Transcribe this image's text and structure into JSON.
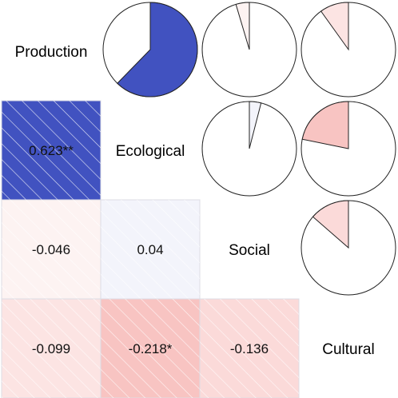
{
  "chart_data": {
    "type": "heatmap",
    "title": "",
    "variables": [
      "Production",
      "Ecological",
      "Social",
      "Cultural"
    ],
    "color_scale": {
      "negative": "#e8413c",
      "zero": "#ffffff",
      "positive": "#2a3db8"
    },
    "lower_triangle": [
      {
        "row": 1,
        "col": 0,
        "value": 0.623,
        "label": "0.623**"
      },
      {
        "row": 2,
        "col": 0,
        "value": -0.046,
        "label": "-0.046"
      },
      {
        "row": 2,
        "col": 1,
        "value": 0.04,
        "label": "0.04"
      },
      {
        "row": 3,
        "col": 0,
        "value": -0.099,
        "label": "-0.099"
      },
      {
        "row": 3,
        "col": 1,
        "value": -0.218,
        "label": "-0.218*"
      },
      {
        "row": 3,
        "col": 2,
        "value": -0.136,
        "label": "-0.136"
      }
    ],
    "upper_triangle_pies": [
      {
        "row": 0,
        "col": 1,
        "value": 0.623
      },
      {
        "row": 0,
        "col": 2,
        "value": -0.046
      },
      {
        "row": 0,
        "col": 3,
        "value": -0.099
      },
      {
        "row": 1,
        "col": 2,
        "value": 0.04
      },
      {
        "row": 1,
        "col": 3,
        "value": -0.218
      },
      {
        "row": 2,
        "col": 3,
        "value": -0.136
      }
    ]
  }
}
